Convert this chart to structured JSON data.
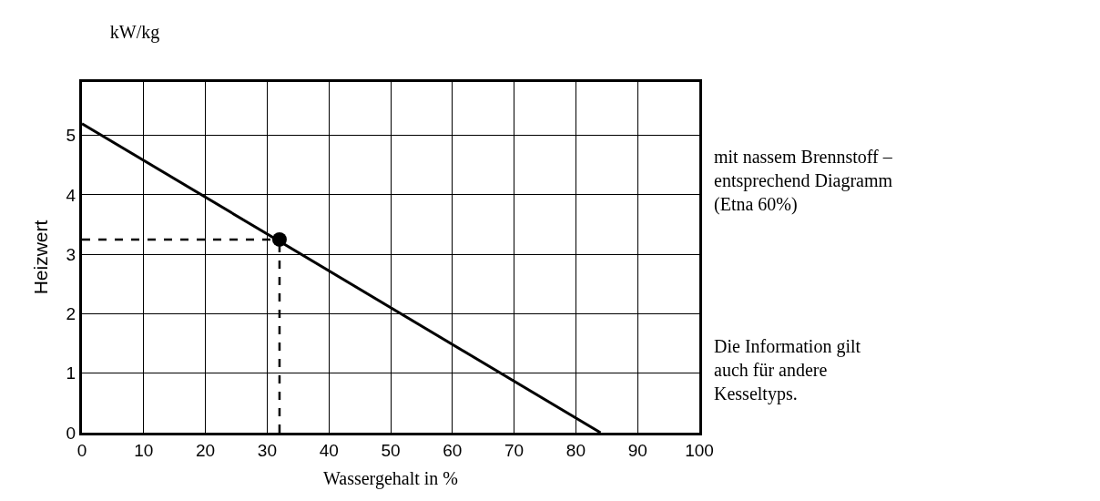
{
  "chart_data": {
    "type": "line",
    "title": "kW/kg",
    "xlabel": "Wassergehalt in %",
    "ylabel": "Heizwert",
    "series": [
      {
        "color": "#000000",
        "x": [
          0,
          84
        ],
        "values": [
          5.2,
          0
        ],
        "marker": "none"
      },
      {
        "type": "scatter",
        "color": "#000000",
        "x": [
          32
        ],
        "values": [
          3.25
        ],
        "marker": "circle"
      }
    ],
    "ref_lines": [
      {
        "axis": "y",
        "value": 3.25,
        "line_style": "dashed",
        "color": "#000000"
      },
      {
        "axis": "x",
        "value": 32,
        "line_style": "dashed",
        "color": "#000000"
      }
    ],
    "annotations": [
      "mit nassem Brennstoff – entsprechend Diagramm (Etna 60%)",
      "Die Information gilt auch für andere Kesseltyps."
    ],
    "xlim": [
      0,
      100
    ],
    "xticks": [
      0,
      10,
      20,
      30,
      40,
      50,
      60,
      70,
      80,
      90,
      100
    ],
    "ylim": [
      0,
      5.9
    ],
    "yticks": [
      0,
      1,
      2,
      3,
      4,
      5
    ],
    "grid": true
  }
}
